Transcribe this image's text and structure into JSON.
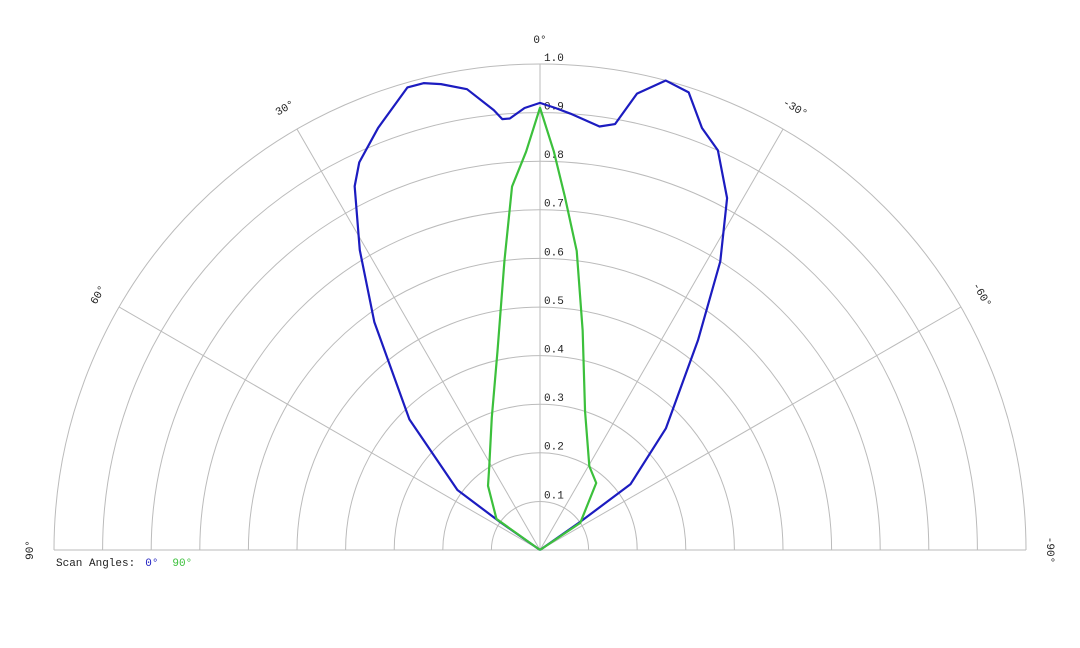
{
  "chart_data": {
    "type": "polar",
    "thetaticks": [
      {
        "value": 90,
        "label": "90°"
      },
      {
        "value": 60,
        "label": "60°"
      },
      {
        "value": 30,
        "label": "30°"
      },
      {
        "value": 0,
        "label": "0°"
      },
      {
        "value": -30,
        "label": "-30°"
      },
      {
        "value": -60,
        "label": "-60°"
      },
      {
        "value": -90,
        "label": "-90°"
      }
    ],
    "rlim": [
      0,
      1
    ],
    "rticks": [
      0.1,
      0.2,
      0.3,
      0.4,
      0.5,
      0.6,
      0.7,
      0.8,
      0.9,
      {
        "value": 1,
        "label": "1.0"
      }
    ],
    "legend_title": "Scan Angles:",
    "series": [
      {
        "name": "0°",
        "color": "#1c1cc0",
        "x": [
          60,
          55,
          54,
          45,
          36,
          31,
          27,
          25,
          21,
          16,
          14,
          12,
          9,
          6,
          5,
          4,
          2,
          0,
          -2,
          -4,
          -8,
          -10,
          -12,
          -15,
          -18,
          -21,
          -24,
          -28,
          -32,
          -37,
          -46,
          -54,
          -55,
          -60
        ],
        "values": [
          0,
          0.1,
          0.21,
          0.38,
          0.58,
          0.72,
          0.84,
          0.88,
          0.93,
          0.99,
          0.99,
          0.98,
          0.96,
          0.91,
          0.89,
          0.89,
          0.91,
          0.92,
          0.91,
          0.9,
          0.88,
          0.89,
          0.96,
          1.0,
          0.99,
          0.93,
          0.9,
          0.82,
          0.7,
          0.54,
          0.36,
          0.23,
          0.1,
          0
        ]
      },
      {
        "name": "90°",
        "color": "#3cc03c",
        "x": [
          60,
          54.5,
          39,
          31.5,
          20,
          12,
          7,
          4.4,
          2,
          0,
          -2,
          -4,
          -7,
          -11,
          -18,
          -30.5,
          -40,
          -56,
          -60
        ],
        "values": [
          0,
          0.11,
          0.17,
          0.2,
          0.29,
          0.42,
          0.6,
          0.75,
          0.82,
          0.91,
          0.82,
          0.73,
          0.62,
          0.46,
          0.3,
          0.2,
          0.18,
          0.1,
          0
        ]
      }
    ]
  }
}
